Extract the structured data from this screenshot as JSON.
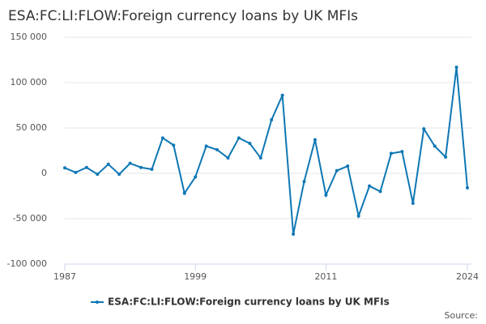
{
  "chart_data": {
    "type": "line",
    "title": "ESA:FC:LI:FLOW:Foreign currency loans by UK MFIs",
    "x": [
      1987,
      1988,
      1989,
      1990,
      1991,
      1992,
      1993,
      1994,
      1995,
      1996,
      1997,
      1998,
      1999,
      2000,
      2001,
      2002,
      2003,
      2004,
      2005,
      2006,
      2007,
      2008,
      2009,
      2010,
      2011,
      2012,
      2013,
      2014,
      2015,
      2016,
      2017,
      2018,
      2019,
      2020,
      2021,
      2022,
      2023,
      2024
    ],
    "series": [
      {
        "name": "ESA:FC:LI:FLOW:Foreign currency loans by UK MFIs",
        "color": "#0e77b4",
        "values": [
          6000,
          1000,
          6500,
          -1000,
          10000,
          -1000,
          11000,
          6500,
          4500,
          39000,
          31000,
          -22000,
          -4000,
          30000,
          26000,
          17000,
          39000,
          33000,
          17000,
          59000,
          86000,
          -67000,
          -9000,
          37000,
          -24000,
          3000,
          8000,
          -47000,
          -14000,
          -20000,
          22000,
          24000,
          -33000,
          49000,
          30000,
          18000,
          117000,
          -16000
        ]
      }
    ],
    "xlim": [
      1987,
      2024
    ],
    "xticks": [
      1987,
      1999,
      2011,
      2024
    ],
    "ylim": [
      -100000,
      150000
    ],
    "yticks": [
      {
        "value": -100000,
        "label": "-100 000"
      },
      {
        "value": -50000,
        "label": "-50 000"
      },
      0,
      {
        "value": 50000,
        "label": "50 000"
      },
      {
        "value": 100000,
        "label": "100 000"
      },
      {
        "value": 150000,
        "label": "150 000"
      }
    ],
    "grid": true,
    "legend": "bottom",
    "source": "Source:"
  }
}
